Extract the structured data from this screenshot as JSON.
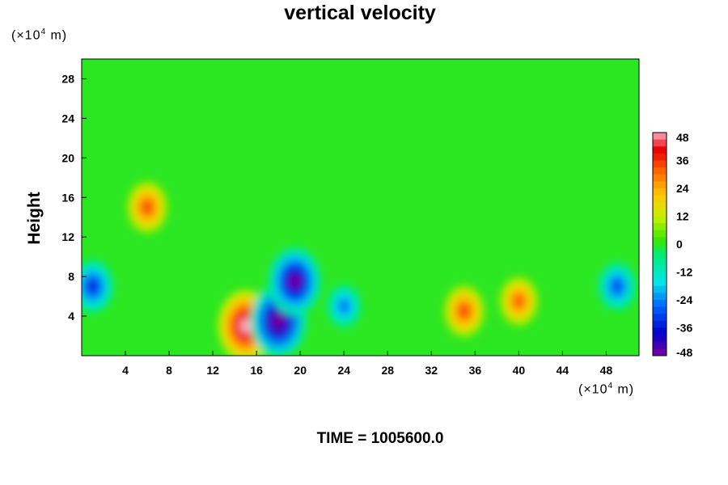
{
  "chart_data": {
    "type": "heatmap",
    "title": "vertical velocity",
    "ylabel": "Height",
    "xunit": "(×10",
    "yunit": "(×10",
    "unit_exp": "4",
    "unit_tail": " m)",
    "footer": "TIME = 1005600.0",
    "xlim": [
      0,
      51
    ],
    "ylim": [
      0,
      30
    ],
    "xticks": [
      4,
      8,
      12,
      16,
      20,
      24,
      28,
      32,
      36,
      40,
      44,
      48
    ],
    "yticks": [
      4,
      8,
      12,
      16,
      20,
      24,
      28
    ],
    "colorbar": {
      "ticks": [
        48,
        36,
        24,
        12,
        0,
        -12,
        -24,
        -36,
        -48
      ],
      "range": [
        -48,
        48
      ],
      "levels": 32
    },
    "background_value": 0,
    "features": [
      {
        "x": 15,
        "y": 3.0,
        "value": 52
      },
      {
        "x": 18,
        "y": 3.5,
        "value": -52
      },
      {
        "x": 19.5,
        "y": 7.5,
        "value": -48
      },
      {
        "x": 35,
        "y": 4.5,
        "value": 36
      },
      {
        "x": 40,
        "y": 5.5,
        "value": 34
      },
      {
        "x": 49,
        "y": 7,
        "value": -32
      },
      {
        "x": 1,
        "y": 7,
        "value": -36
      },
      {
        "x": 6,
        "y": 15,
        "value": 36
      },
      {
        "x": 24,
        "y": 5,
        "value": -28
      }
    ]
  }
}
